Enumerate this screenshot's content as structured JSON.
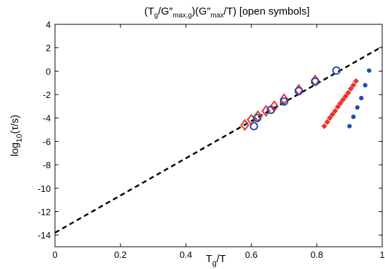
{
  "chart_data": {
    "type": "scatter",
    "title": "(T_g/G″_max,g)(G″_max/T) [open symbols]",
    "title_parts": {
      "p1": "(T",
      "p1_sub": "g",
      "p2": "/G″",
      "p2_sub": "max,g",
      "p3": ")(G″",
      "p3_sub": "max",
      "p4": "/T) [open symbols]"
    },
    "xlabel": "T_g/T",
    "xlabel_parts": {
      "main": "T",
      "sub": "g",
      "rest": "/T"
    },
    "ylabel": "log10(τ/s)",
    "ylabel_parts": {
      "main": "log",
      "sub": "10",
      "rest": "(τ/s)"
    },
    "xlim": [
      0,
      1
    ],
    "ylim": [
      -15,
      4
    ],
    "x_ticks": [
      0,
      0.2,
      0.4,
      0.6,
      0.8,
      1
    ],
    "x_tick_labels": [
      "0",
      "0.2",
      "0.4",
      "0.6",
      "0.8",
      "1"
    ],
    "y_ticks": [
      4,
      2,
      0,
      -2,
      -4,
      -6,
      -8,
      -10,
      -12,
      -14
    ],
    "y_tick_labels": [
      "4",
      "2",
      "0",
      "-2",
      "-4",
      "-6",
      "-8",
      "-10",
      "-12",
      "-14"
    ],
    "grid": false,
    "fit_line": {
      "style": "dashed",
      "color": "#000000",
      "x": [
        0,
        1
      ],
      "y": [
        -13.8,
        2.1
      ]
    },
    "series": [
      {
        "marker": "open-diamond",
        "color": "#e8342a",
        "x": [
          0.58,
          0.6,
          0.62,
          0.645,
          0.67,
          0.7,
          0.745,
          0.795
        ],
        "y": [
          -4.6,
          -4.15,
          -3.85,
          -3.4,
          -3.0,
          -2.4,
          -1.6,
          -0.8
        ]
      },
      {
        "marker": "open-circle",
        "color": "#1f4fb0",
        "x": [
          0.608,
          0.618,
          0.66,
          0.7,
          0.745,
          0.795,
          0.86
        ],
        "y": [
          -4.7,
          -4.0,
          -3.3,
          -2.6,
          -1.7,
          -0.9,
          0.05
        ]
      },
      {
        "marker": "filled-diamond",
        "color": "#e8342a",
        "x": [
          0.823,
          0.832,
          0.84,
          0.848,
          0.856,
          0.864,
          0.872,
          0.88,
          0.888,
          0.896,
          0.904,
          0.912,
          0.92
        ],
        "y": [
          -4.7,
          -4.35,
          -4.0,
          -3.7,
          -3.4,
          -3.05,
          -2.75,
          -2.45,
          -2.15,
          -1.85,
          -1.5,
          -1.2,
          -0.85
        ]
      },
      {
        "marker": "filled-circle",
        "color": "#1f4fb0",
        "x": [
          0.9,
          0.912,
          0.924,
          0.936,
          0.948,
          0.96
        ],
        "y": [
          -4.7,
          -3.9,
          -3.1,
          -2.3,
          -1.2,
          0.05
        ]
      }
    ]
  }
}
